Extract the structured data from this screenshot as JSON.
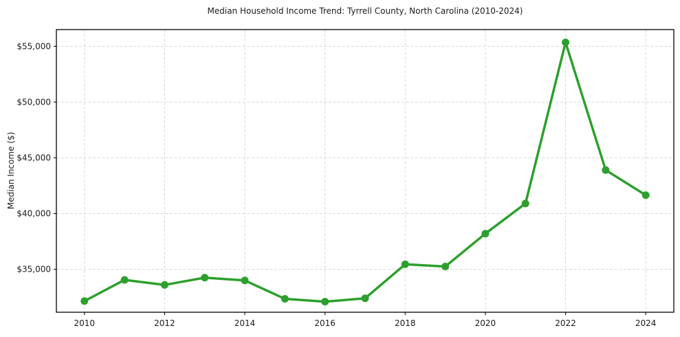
{
  "chart_data": {
    "type": "line",
    "title": "Median Household Income Trend: Tyrrell County, North Carolina (2010-2024)",
    "xlabel": "",
    "ylabel": "Median Income ($)",
    "x": [
      2010,
      2011,
      2012,
      2013,
      2014,
      2015,
      2016,
      2017,
      2018,
      2019,
      2020,
      2021,
      2022,
      2023,
      2024
    ],
    "values": [
      32150,
      34050,
      33600,
      34250,
      34000,
      32350,
      32100,
      32400,
      35450,
      35250,
      38200,
      40900,
      55350,
      43900,
      41650
    ],
    "xticks": [
      2010,
      2012,
      2014,
      2016,
      2018,
      2020,
      2022,
      2024
    ],
    "xtick_labels": [
      "2010",
      "2012",
      "2014",
      "2016",
      "2018",
      "2020",
      "2022",
      "2024"
    ],
    "ytick_values": [
      35000,
      40000,
      45000,
      50000,
      55000
    ],
    "ytick_labels": [
      "$35,000",
      "$40,000",
      "$45,000",
      "$50,000",
      "$55,000"
    ],
    "xlim": [
      2009.3,
      2024.7
    ],
    "ylim": [
      31150,
      56500
    ],
    "grid": true,
    "legend": false,
    "line_color": "#2ca02c",
    "marker": "o",
    "grid_color": "#d8d8d8",
    "text_color": "#1a1a1a"
  }
}
